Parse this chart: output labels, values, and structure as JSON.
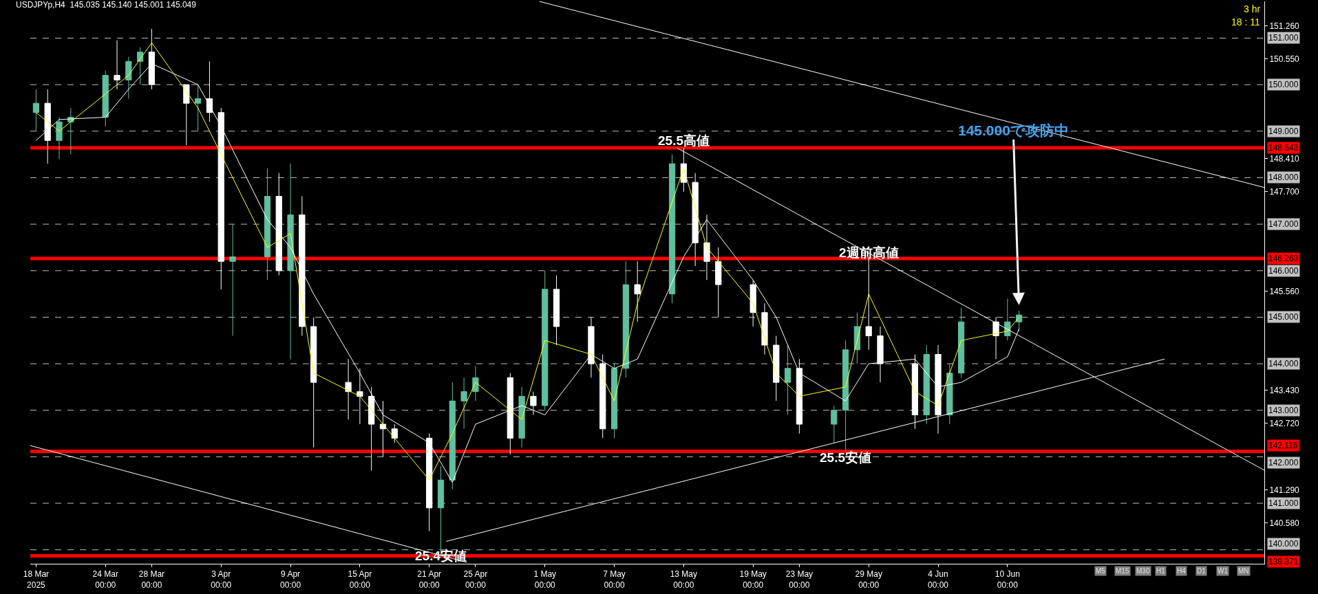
{
  "chart_data": {
    "type": "candlestick",
    "title": "USDJPYp,H4  145.035 145.140 145.001 145.049",
    "x": [
      "2025-03-18",
      "2025-03-19",
      "2025-03-20",
      "2025-03-21",
      "2025-03-24",
      "2025-03-25",
      "2025-03-26",
      "2025-03-27",
      "2025-03-28",
      "2025-03-31",
      "2025-04-01",
      "2025-04-02",
      "2025-04-03",
      "2025-04-04",
      "2025-04-07",
      "2025-04-08",
      "2025-04-09",
      "2025-04-10",
      "2025-04-11",
      "2025-04-14",
      "2025-04-15",
      "2025-04-16",
      "2025-04-17",
      "2025-04-18",
      "2025-04-21",
      "2025-04-22",
      "2025-04-23",
      "2025-04-24",
      "2025-04-25",
      "2025-04-28",
      "2025-04-29",
      "2025-04-30",
      "2025-05-01",
      "2025-05-02",
      "2025-05-05",
      "2025-05-06",
      "2025-05-07",
      "2025-05-08",
      "2025-05-09",
      "2025-05-12",
      "2025-05-13",
      "2025-05-14",
      "2025-05-15",
      "2025-05-16",
      "2025-05-19",
      "2025-05-20",
      "2025-05-21",
      "2025-05-22",
      "2025-05-23",
      "2025-05-26",
      "2025-05-27",
      "2025-05-28",
      "2025-05-29",
      "2025-05-30",
      "2025-06-02",
      "2025-06-03",
      "2025-06-04",
      "2025-06-05",
      "2025-06-06",
      "2025-06-09",
      "2025-06-10",
      "2025-06-11"
    ],
    "ohlc": [
      [
        149.4,
        149.9,
        149.0,
        149.6
      ],
      [
        149.6,
        149.9,
        148.3,
        148.8
      ],
      [
        148.8,
        149.3,
        148.4,
        149.2
      ],
      [
        149.2,
        149.5,
        148.5,
        149.3
      ],
      [
        149.3,
        150.3,
        149.1,
        150.2
      ],
      [
        150.2,
        150.95,
        149.9,
        150.1
      ],
      [
        150.1,
        150.6,
        149.7,
        150.5
      ],
      [
        150.5,
        150.8,
        150.0,
        150.7
      ],
      [
        150.7,
        151.2,
        149.9,
        150.0
      ],
      [
        150.0,
        150.0,
        148.7,
        149.6
      ],
      [
        149.6,
        150.0,
        149.0,
        149.7
      ],
      [
        149.7,
        150.5,
        149.2,
        149.4
      ],
      [
        149.4,
        149.5,
        145.6,
        146.2
      ],
      [
        146.2,
        147.0,
        144.6,
        146.3
      ],
      [
        146.3,
        148.2,
        145.8,
        147.6
      ],
      [
        147.6,
        148.1,
        145.9,
        146.0
      ],
      [
        146.0,
        148.3,
        144.1,
        147.2
      ],
      [
        147.2,
        147.6,
        144.6,
        144.8
      ],
      [
        144.8,
        145.0,
        142.2,
        143.6
      ],
      [
        143.6,
        144.1,
        142.8,
        143.4
      ],
      [
        143.4,
        143.9,
        142.7,
        143.3
      ],
      [
        143.3,
        143.5,
        141.7,
        142.7
      ],
      [
        142.7,
        143.2,
        142.0,
        142.6
      ],
      [
        142.6,
        142.7,
        142.3,
        142.4
      ],
      [
        142.4,
        142.5,
        140.4,
        140.9
      ],
      [
        140.9,
        141.8,
        139.89,
        141.5
      ],
      [
        141.5,
        143.6,
        141.3,
        143.2
      ],
      [
        143.2,
        143.7,
        142.6,
        143.4
      ],
      [
        143.4,
        143.95,
        143.2,
        143.7
      ],
      [
        143.7,
        143.8,
        142.05,
        142.4
      ],
      [
        142.4,
        143.5,
        142.2,
        143.3
      ],
      [
        143.3,
        143.4,
        142.9,
        143.1
      ],
      [
        143.1,
        146.0,
        143.0,
        145.6
      ],
      [
        145.6,
        145.9,
        144.4,
        144.8
      ],
      [
        144.8,
        145.0,
        143.7,
        144.0
      ],
      [
        144.0,
        144.2,
        142.4,
        142.6
      ],
      [
        142.6,
        144.0,
        142.4,
        143.9
      ],
      [
        143.9,
        146.2,
        143.7,
        145.7
      ],
      [
        145.7,
        146.2,
        144.9,
        145.5
      ],
      [
        145.5,
        148.5,
        145.3,
        148.3
      ],
      [
        148.3,
        148.643,
        147.7,
        147.9
      ],
      [
        147.9,
        148.1,
        146.1,
        146.6
      ],
      [
        146.6,
        147.2,
        145.8,
        146.2
      ],
      [
        146.2,
        146.5,
        145.0,
        145.7
      ],
      [
        145.7,
        145.8,
        144.8,
        145.1
      ],
      [
        145.1,
        145.3,
        144.2,
        144.4
      ],
      [
        144.4,
        144.6,
        143.2,
        143.6
      ],
      [
        143.6,
        144.4,
        142.9,
        143.9
      ],
      [
        143.9,
        144.1,
        142.5,
        142.7
      ],
      [
        142.7,
        143.1,
        142.3,
        143.0
      ],
      [
        143.0,
        144.5,
        142.116,
        144.3
      ],
      [
        144.3,
        145.1,
        144.0,
        144.8
      ],
      [
        144.8,
        146.263,
        144.3,
        144.6
      ],
      [
        144.6,
        144.8,
        143.6,
        144.0
      ],
      [
        144.0,
        144.2,
        142.6,
        142.9
      ],
      [
        142.9,
        144.4,
        142.7,
        144.2
      ],
      [
        144.2,
        144.4,
        142.5,
        142.9
      ],
      [
        142.9,
        144.0,
        142.7,
        143.8
      ],
      [
        143.8,
        145.2,
        143.7,
        144.9
      ],
      [
        144.9,
        145.0,
        144.1,
        144.6
      ],
      [
        144.6,
        145.4,
        144.5,
        144.9
      ],
      [
        144.9,
        145.14,
        144.7,
        145.049
      ]
    ],
    "colors": [
      "#5fbf9f",
      "#ffffff",
      "#5fbf9f",
      "#5fbf9f",
      "#5fbf9f",
      "#ffffff",
      "#5fbf9f",
      "#5fbf9f",
      "#ffffff",
      "#ffffff",
      "#5fbf9f",
      "#ffffff",
      "#ffffff",
      "#5fbf9f",
      "#5fbf9f",
      "#ffffff",
      "#5fbf9f",
      "#ffffff",
      "#ffffff",
      "#ffffff",
      "#ffffff",
      "#ffffff",
      "#ffffff",
      "#ffffff",
      "#ffffff",
      "#5fbf9f",
      "#5fbf9f",
      "#5fbf9f",
      "#5fbf9f",
      "#ffffff",
      "#5fbf9f",
      "#ffffff",
      "#5fbf9f",
      "#ffffff",
      "#ffffff",
      "#ffffff",
      "#5fbf9f",
      "#5fbf9f",
      "#ffffff",
      "#5fbf9f",
      "#ffffff",
      "#ffffff",
      "#ffffff",
      "#ffffff",
      "#ffffff",
      "#ffffff",
      "#ffffff",
      "#5fbf9f",
      "#ffffff",
      "#5fbf9f",
      "#5fbf9f",
      "#5fbf9f",
      "#ffffff",
      "#ffffff",
      "#ffffff",
      "#5fbf9f",
      "#ffffff",
      "#5fbf9f",
      "#5fbf9f",
      "#ffffff",
      "#5fbf9f",
      "#5fbf9f"
    ],
    "series": [
      {
        "type": "line",
        "color": "#ffff00",
        "x": [
          "2025-03-18",
          "2025-03-20",
          "2025-03-24",
          "2025-03-26",
          "2025-03-28",
          "2025-04-01",
          "2025-04-03",
          "2025-04-07",
          "2025-04-09",
          "2025-04-11",
          "2025-04-15",
          "2025-04-17",
          "2025-04-21",
          "2025-04-23",
          "2025-04-25",
          "2025-04-29",
          "2025-05-01",
          "2025-05-05",
          "2025-05-07",
          "2025-05-09",
          "2025-05-13",
          "2025-05-15",
          "2025-05-19",
          "2025-05-21",
          "2025-05-23",
          "2025-05-27",
          "2025-05-29",
          "2025-06-02",
          "2025-06-04",
          "2025-06-06",
          "2025-06-10",
          "2025-06-11"
        ],
        "values": [
          149.4,
          149.0,
          149.8,
          150.2,
          150.9,
          149.5,
          148.5,
          146.5,
          146.8,
          143.8,
          143.3,
          142.7,
          141.5,
          142.5,
          143.6,
          142.8,
          144.5,
          144.2,
          143.2,
          145.3,
          148.2,
          146.5,
          145.3,
          143.8,
          143.3,
          143.5,
          145.5,
          143.4,
          143.1,
          144.5,
          144.7,
          145.0
        ]
      },
      {
        "type": "line",
        "color": "#ffffff",
        "x": [
          "2025-03-18",
          "2025-03-20",
          "2025-03-24",
          "2025-03-26",
          "2025-03-28",
          "2025-04-01",
          "2025-04-03",
          "2025-04-07",
          "2025-04-09",
          "2025-04-11",
          "2025-04-15",
          "2025-04-17",
          "2025-04-21",
          "2025-04-23",
          "2025-04-25",
          "2025-04-29",
          "2025-05-01",
          "2025-05-05",
          "2025-05-07",
          "2025-05-09",
          "2025-05-13",
          "2025-05-15",
          "2025-05-19",
          "2025-05-21",
          "2025-05-23",
          "2025-05-27",
          "2025-05-29",
          "2025-06-02",
          "2025-06-04",
          "2025-06-06",
          "2025-06-10",
          "2025-06-11"
        ],
        "values": [
          148.8,
          149.25,
          149.3,
          149.9,
          150.45,
          150.0,
          149.1,
          147.1,
          146.5,
          145.5,
          143.8,
          142.9,
          142.3,
          141.45,
          142.7,
          143.1,
          142.9,
          144.2,
          143.9,
          144.1,
          146.3,
          147.1,
          145.8,
          145.0,
          143.8,
          143.2,
          144.0,
          144.1,
          143.5,
          143.6,
          144.15,
          144.75
        ]
      },
      {
        "type": "line",
        "color": "#ffffff",
        "x": [
          "2025-04-30T12:00",
          "2025-07-02T05:00"
        ],
        "values": [
          151.79,
          147.79
        ]
      },
      {
        "type": "line",
        "color": "#ffffff",
        "x": [
          "2025-05-12T10:00",
          "2025-07-02T05:00"
        ],
        "values": [
          148.64,
          141.71
        ]
      },
      {
        "type": "line",
        "color": "#ffffff",
        "x": [
          "2025-03-17T12:00",
          "2025-04-24T06:00"
        ],
        "values": [
          142.24,
          139.73
        ]
      },
      {
        "type": "line",
        "color": "#ffffff",
        "x": [
          "2025-04-22T11:00",
          "2025-06-23T14:00"
        ],
        "values": [
          140.18,
          144.1
        ]
      }
    ],
    "xlim": [
      "2025-03-17T12:00",
      "2025-07-02T05:00"
    ],
    "xticks": [
      {
        "value": "2025-03-18",
        "label": "18 Mar 2025"
      },
      {
        "value": "2025-03-24",
        "label": "24 Mar 00:00"
      },
      {
        "value": "2025-03-28",
        "label": "28 Mar 00:00"
      },
      {
        "value": "2025-04-03",
        "label": "3 Apr 00:00"
      },
      {
        "value": "2025-04-09",
        "label": "9 Apr 00:00"
      },
      {
        "value": "2025-04-15",
        "label": "15 Apr 00:00"
      },
      {
        "value": "2025-04-21",
        "label": "21 Apr 00:00"
      },
      {
        "value": "2025-04-25",
        "label": "25 Apr 00:00"
      },
      {
        "value": "2025-05-01",
        "label": "1 May 00:00"
      },
      {
        "value": "2025-05-07",
        "label": "7 May 00:00"
      },
      {
        "value": "2025-05-13",
        "label": "13 May 00:00"
      },
      {
        "value": "2025-05-19",
        "label": "19 May 00:00"
      },
      {
        "value": "2025-05-23",
        "label": "23 May 00:00"
      },
      {
        "value": "2025-05-29",
        "label": "29 May 00:00"
      },
      {
        "value": "2025-06-04",
        "label": "4 Jun 00:00"
      },
      {
        "value": "2025-06-10",
        "label": "10 Jun 00:00"
      }
    ],
    "ylim": [
      139.7,
      151.79
    ],
    "yticks": [
      {
        "value": 151.26,
        "label": "151.260"
      },
      {
        "value": 150.55,
        "label": "150.550"
      },
      {
        "value": 148.41,
        "label": "148.410"
      },
      {
        "value": 147.7,
        "label": "147.700"
      },
      {
        "value": 145.56,
        "label": "145.560"
      },
      {
        "value": 143.43,
        "label": "143.430"
      },
      {
        "value": 142.72,
        "label": "142.720"
      },
      {
        "value": 141.29,
        "label": "141.290"
      },
      {
        "value": 140.58,
        "label": "140.580"
      }
    ],
    "ref_lines": [
      {
        "axis": "y",
        "value": 151,
        "label": "151.000",
        "color": "#c0c0c0",
        "line_style": "dashed"
      },
      {
        "axis": "y",
        "value": 150,
        "label": "150.000",
        "color": "#c0c0c0",
        "line_style": "dashed"
      },
      {
        "axis": "y",
        "value": 149,
        "label": "149.000",
        "color": "#c0c0c0",
        "line_style": "dashed"
      },
      {
        "axis": "y",
        "value": 148,
        "label": "148.000",
        "color": "#c0c0c0",
        "line_style": "dashed"
      },
      {
        "axis": "y",
        "value": 147,
        "label": "147.000",
        "color": "#c0c0c0",
        "line_style": "dashed"
      },
      {
        "axis": "y",
        "value": 146,
        "label": "146.000",
        "color": "#c0c0c0",
        "line_style": "dashed"
      },
      {
        "axis": "y",
        "value": 145,
        "label": "145.000",
        "color": "#c0c0c0",
        "line_style": "dashed"
      },
      {
        "axis": "y",
        "value": 144,
        "label": "144.000",
        "color": "#c0c0c0",
        "line_style": "dashed"
      },
      {
        "axis": "y",
        "value": 143,
        "label": "143.000",
        "color": "#c0c0c0",
        "line_style": "dashed"
      },
      {
        "axis": "y",
        "value": 142,
        "label": "142.000",
        "color": "#c0c0c0",
        "line_style": "dashed"
      },
      {
        "axis": "y",
        "value": 141,
        "label": "141.000",
        "color": "#c0c0c0",
        "line_style": "dashed"
      },
      {
        "axis": "y",
        "value": 140,
        "label": "140.000",
        "color": "#c0c0c0",
        "line_style": "dashed"
      },
      {
        "axis": "y",
        "value": 148.643,
        "label": "148.643",
        "color": "#ff0000",
        "line_style": "solid"
      },
      {
        "axis": "y",
        "value": 146.263,
        "label": "146.263",
        "color": "#ff0000",
        "line_style": "solid"
      },
      {
        "axis": "y",
        "value": 142.116,
        "label": "142.116",
        "color": "#ff0000",
        "line_style": "solid"
      },
      {
        "axis": "y",
        "value": 139.871,
        "label": "139.871",
        "color": "#ff0000",
        "line_style": "solid"
      }
    ],
    "annotations": [
      {
        "text": "25.5高値",
        "x": "2025-05-13",
        "y": 148.643
      },
      {
        "text": "2週前高値",
        "x": "2025-05-29",
        "y": 146.263
      },
      {
        "text": "25.5安値",
        "x": "2025-05-27",
        "y": 142.116
      },
      {
        "text": "25.4安値",
        "x": "2025-04-22",
        "y": 139.871
      },
      {
        "text": "145.000で攻防中",
        "x": "2025-06-11",
        "y": 145.2
      },
      "3 hr",
      "18 : 11",
      "M5",
      "M15",
      "M30",
      "H1",
      "H4",
      "D1",
      "W1",
      "MN"
    ]
  }
}
